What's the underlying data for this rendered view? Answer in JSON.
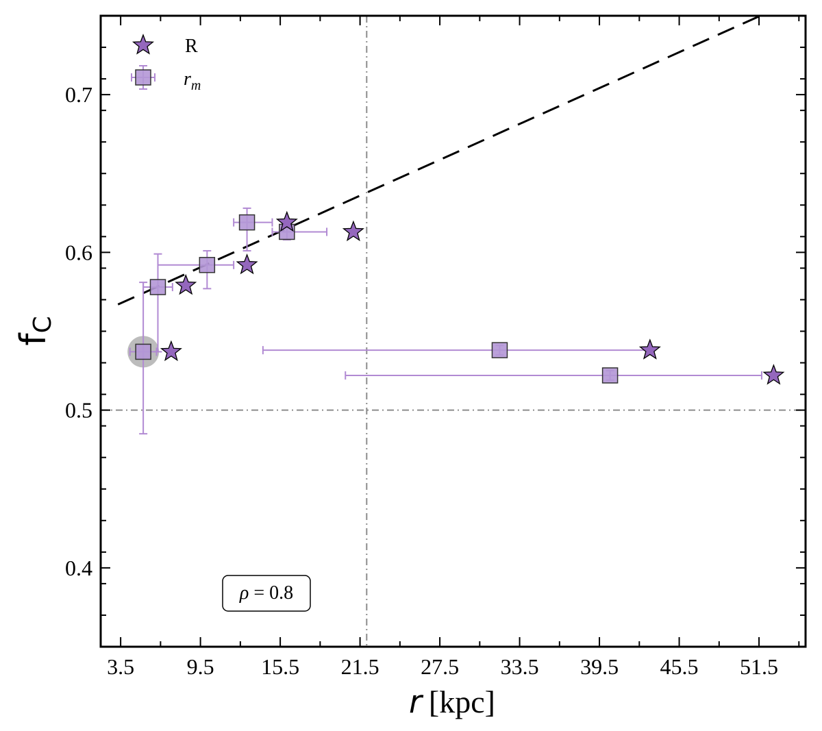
{
  "chart_data": {
    "type": "scatter",
    "xlabel": {
      "symbol": "r",
      "unit": "[kpc]"
    },
    "ylabel": {
      "main": "f",
      "sub": "C"
    },
    "xlim": [
      2.0,
      55.0
    ],
    "ylim": [
      0.35,
      0.75
    ],
    "x_ticks": [
      3.5,
      9.5,
      15.5,
      21.5,
      27.5,
      33.5,
      39.5,
      45.5,
      51.5
    ],
    "x_tick_labels": [
      "3.5",
      "9.5",
      "15.5",
      "21.5",
      "27.5",
      "33.5",
      "39.5",
      "45.5",
      "51.5"
    ],
    "y_ticks": [
      0.4,
      0.5,
      0.6,
      0.7
    ],
    "y_tick_labels": [
      "0.4",
      "0.5",
      "0.6",
      "0.7"
    ],
    "legend": {
      "placement": "top-left",
      "entries": [
        {
          "label": "R",
          "marker": "star"
        },
        {
          "label_symbol": "r",
          "label_sub": "m",
          "marker": "square"
        }
      ]
    },
    "annotation": {
      "symbol": "ρ",
      "text": " = 0.8"
    },
    "colors": {
      "marker_fill": "#9467bd",
      "square_fill": "#b497d6",
      "errorbar": "#b18ad3",
      "guide": "#8c8c8c",
      "fit_line": "#000000",
      "highlight": "#a6a6a6"
    },
    "reference_lines": {
      "vertical_x": 22.0,
      "horizontal_y": 0.5
    },
    "fit_line": {
      "x": [
        3.3,
        51.6
      ],
      "y": [
        0.567,
        0.75
      ]
    },
    "series": [
      {
        "name": "R",
        "marker": "star",
        "points": [
          {
            "x": 7.3,
            "y": 0.537
          },
          {
            "x": 8.4,
            "y": 0.579
          },
          {
            "x": 13.0,
            "y": 0.592
          },
          {
            "x": 16.0,
            "y": 0.619
          },
          {
            "x": 21.0,
            "y": 0.613
          },
          {
            "x": 43.3,
            "y": 0.538
          },
          {
            "x": 52.6,
            "y": 0.522
          }
        ]
      },
      {
        "name": "r_m",
        "marker": "square",
        "points": [
          {
            "x": 5.2,
            "y": 0.537,
            "xerr_low": 4.2,
            "xerr_high": 6.2,
            "yerr_low": 0.485,
            "yerr_high": 0.581,
            "highlight": true
          },
          {
            "x": 6.3,
            "y": 0.578,
            "xerr_low": 5.2,
            "xerr_high": 7.4,
            "yerr_low": 0.537,
            "yerr_high": 0.599
          },
          {
            "x": 10.0,
            "y": 0.592,
            "xerr_low": 6.3,
            "xerr_high": 12.0,
            "yerr_low": 0.577,
            "yerr_high": 0.601
          },
          {
            "x": 13.0,
            "y": 0.619,
            "xerr_low": 12.0,
            "xerr_high": 14.9,
            "yerr_low": 0.601,
            "yerr_high": 0.628
          },
          {
            "x": 16.0,
            "y": 0.613,
            "xerr_low": 14.9,
            "xerr_high": 19.0,
            "yerr_low": 0.608,
            "yerr_high": 0.618
          },
          {
            "x": 32.0,
            "y": 0.538,
            "xerr_low": 14.2,
            "xerr_high": 43.3,
            "yerr_low": 0.535,
            "yerr_high": 0.541
          },
          {
            "x": 40.3,
            "y": 0.522,
            "xerr_low": 20.4,
            "xerr_high": 51.7,
            "yerr_low": 0.519,
            "yerr_high": 0.525
          }
        ]
      }
    ]
  }
}
